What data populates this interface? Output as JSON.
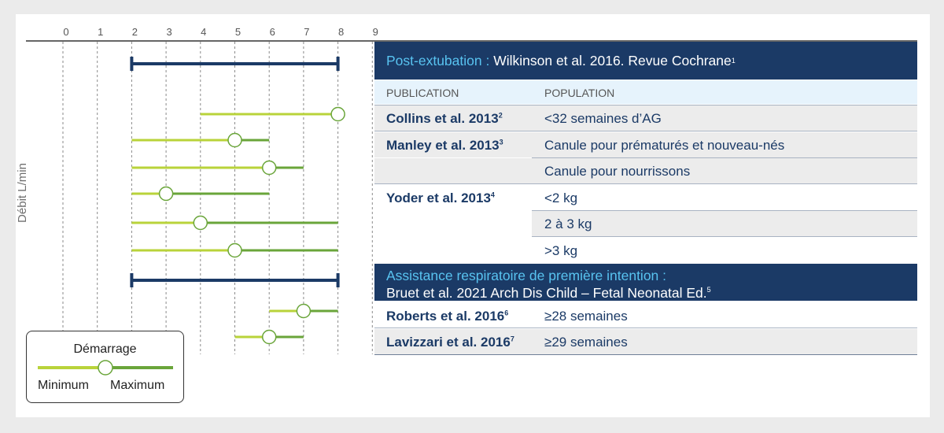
{
  "chart_data": {
    "type": "range",
    "ylabel": "Débit L/min",
    "x_ticks": [
      0,
      1,
      2,
      3,
      4,
      5,
      6,
      7,
      8,
      9
    ],
    "xlim": [
      0,
      9
    ],
    "legend": {
      "start": "Démarrage",
      "min": "Minimum",
      "max": "Maximum"
    },
    "ranges": [
      {
        "kind": "review",
        "min": 2,
        "max": 8
      },
      {
        "kind": "study",
        "min": 4,
        "max": 8,
        "start": 8
      },
      {
        "kind": "study",
        "min": 2,
        "max": 6,
        "start": 5
      },
      {
        "kind": "study",
        "min": 2,
        "max": 7,
        "start": 6
      },
      {
        "kind": "study",
        "min": 2,
        "max": 6,
        "start": 3
      },
      {
        "kind": "study",
        "min": 2,
        "max": 8,
        "start": 4
      },
      {
        "kind": "study",
        "min": 2,
        "max": 8,
        "start": 5
      },
      {
        "kind": "review",
        "min": 2,
        "max": 8
      },
      {
        "kind": "study",
        "min": 6,
        "max": 8,
        "start": 7
      },
      {
        "kind": "study",
        "min": 5,
        "max": 7,
        "start": 6
      }
    ]
  },
  "colors": {
    "navy": "#1b3a66",
    "light_green": "#b9d33a",
    "dark_green": "#6aa53a",
    "accent_blue": "#58c3f0"
  },
  "table": {
    "header1": {
      "label": "Post-extubation :",
      "text": "Wilkinson et al. 2016. Revue Cochrane",
      "ref": "1"
    },
    "columns": {
      "publication": "PUBLICATION",
      "population": "POPULATION"
    },
    "collins": {
      "pub": "Collins et al. 2013",
      "ref": "2",
      "pop": "<32 semaines d’AG"
    },
    "manley": {
      "pub": "Manley et al. 2013",
      "ref": "3",
      "pop1": "Canule pour prématurés et nouveau-nés",
      "pop2": "Canule pour nourrissons"
    },
    "yoder": {
      "pub": "Yoder et al. 2013",
      "ref": "4",
      "pop1": "<2 kg",
      "pop2": "2 à 3 kg",
      "pop3": ">3 kg"
    },
    "header2": {
      "label": "Assistance respiratoire de première intention :",
      "text": "Bruet et al. 2021 Arch Dis Child – Fetal Neonatal Ed.",
      "ref": "5"
    },
    "roberts": {
      "pub": "Roberts et al. 2016",
      "ref": "6",
      "pop": "≥28 semaines"
    },
    "lavizzari": {
      "pub": "Lavizzari et al. 2016",
      "ref": "7",
      "pop": "≥29 semaines"
    }
  }
}
